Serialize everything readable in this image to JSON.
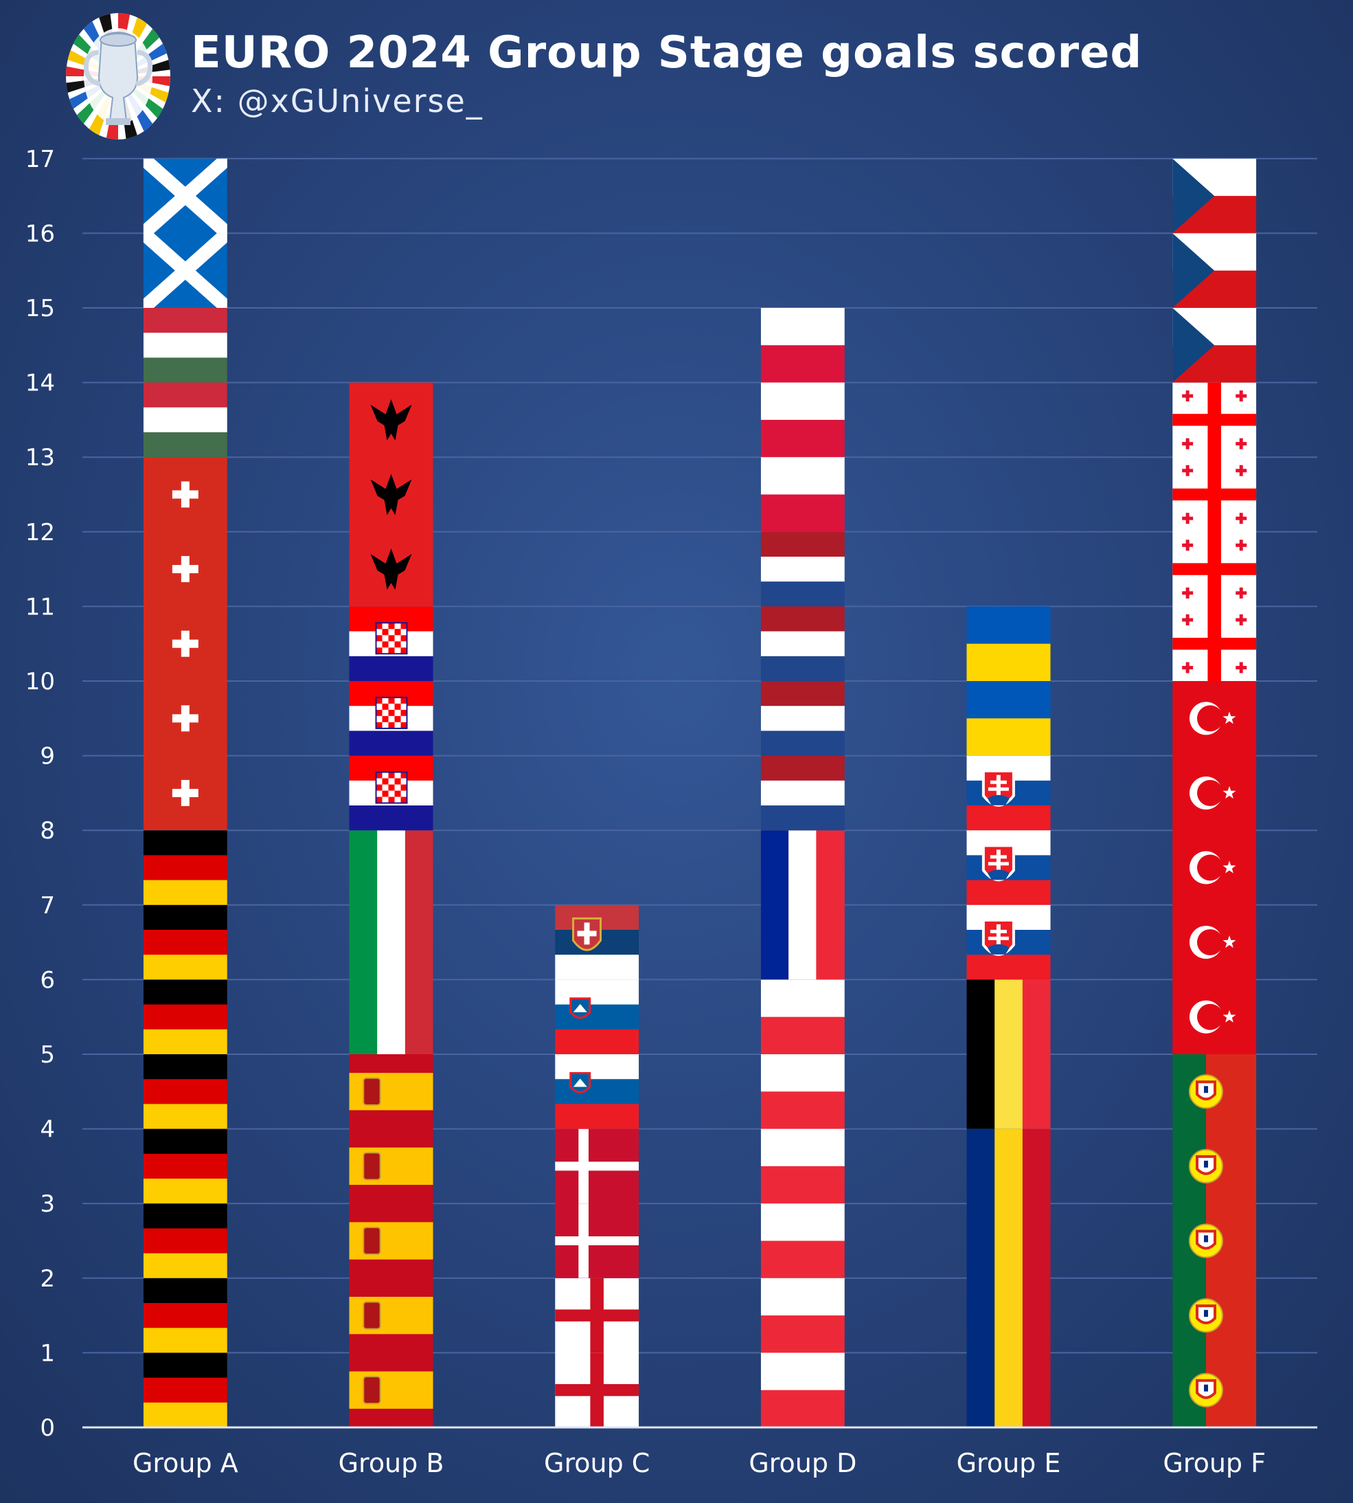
{
  "title": "EURO 2024 Group Stage goals scored",
  "subtitle": "X: @xGUniverse_",
  "logo": {
    "name": "euro-2024-trophy-logo",
    "colors": [
      "#e3262b",
      "#f7c600",
      "#1a9a4a",
      "#1e63c9",
      "#111111",
      "#ffffff"
    ]
  },
  "colors": {
    "background": "#2a4780",
    "gridline": "#4a65a0",
    "axis": "#dfe6f2",
    "text": "#ffffff"
  },
  "chart_data": {
    "type": "bar",
    "stacked": true,
    "categories": [
      "Group A",
      "Group B",
      "Group C",
      "Group D",
      "Group E",
      "Group F"
    ],
    "yticks": [
      0,
      1,
      2,
      3,
      4,
      5,
      6,
      7,
      8,
      9,
      10,
      11,
      12,
      13,
      14,
      15,
      16,
      17
    ],
    "ylim": [
      0,
      17
    ],
    "grid": true,
    "xlabel": "",
    "ylabel": "",
    "stacks": [
      {
        "group": "Group A",
        "total": 17,
        "segments": [
          {
            "team": "Germany",
            "goals": 8
          },
          {
            "team": "Switzerland",
            "goals": 5
          },
          {
            "team": "Hungary",
            "goals": 2
          },
          {
            "team": "Scotland",
            "goals": 2
          }
        ]
      },
      {
        "group": "Group B",
        "total": 14,
        "segments": [
          {
            "team": "Spain",
            "goals": 5
          },
          {
            "team": "Italy",
            "goals": 3
          },
          {
            "team": "Croatia",
            "goals": 3
          },
          {
            "team": "Albania",
            "goals": 3
          }
        ]
      },
      {
        "group": "Group C",
        "total": 7,
        "segments": [
          {
            "team": "England",
            "goals": 2
          },
          {
            "team": "Denmark",
            "goals": 2
          },
          {
            "team": "Slovenia",
            "goals": 2
          },
          {
            "team": "Serbia",
            "goals": 1
          }
        ]
      },
      {
        "group": "Group D",
        "total": 15,
        "segments": [
          {
            "team": "Austria",
            "goals": 6
          },
          {
            "team": "France",
            "goals": 2
          },
          {
            "team": "Netherlands",
            "goals": 4
          },
          {
            "team": "Poland",
            "goals": 3
          }
        ]
      },
      {
        "group": "Group E",
        "total": 11,
        "segments": [
          {
            "team": "Romania",
            "goals": 4
          },
          {
            "team": "Belgium",
            "goals": 2
          },
          {
            "team": "Slovakia",
            "goals": 3
          },
          {
            "team": "Ukraine",
            "goals": 2
          }
        ]
      },
      {
        "group": "Group F",
        "total": 17,
        "segments": [
          {
            "team": "Portugal",
            "goals": 5
          },
          {
            "team": "Turkey",
            "goals": 5
          },
          {
            "team": "Georgia",
            "goals": 4
          },
          {
            "team": "Czechia",
            "goals": 3
          }
        ]
      }
    ]
  }
}
